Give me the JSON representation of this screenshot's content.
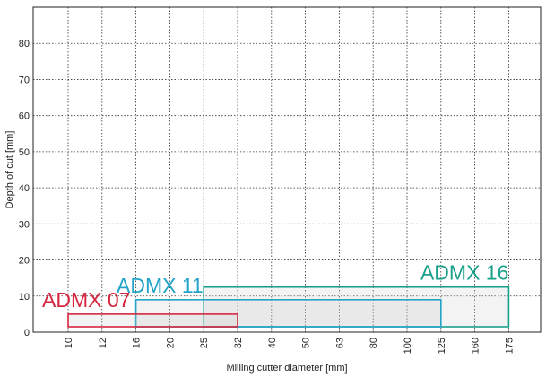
{
  "chart_data": {
    "type": "range-box",
    "xlabel": "Milling cutter diameter [mm]",
    "ylabel": "Depth of cut [mm]",
    "x_scale": "categorical",
    "categories": [
      "10",
      "12",
      "16",
      "20",
      "25",
      "32",
      "40",
      "50",
      "63",
      "80",
      "100",
      "125",
      "160",
      "175"
    ],
    "ylim": [
      0,
      90
    ],
    "yticks": [
      0,
      10,
      20,
      30,
      40,
      50,
      60,
      70,
      80
    ],
    "grid": true,
    "series": [
      {
        "name": "ADMX 07",
        "color": "#d6263f",
        "x_range": [
          "10",
          "32"
        ],
        "y_range": [
          0,
          5
        ]
      },
      {
        "name": "ADMX 11",
        "color": "#24a3c8",
        "x_range": [
          "16",
          "125"
        ],
        "y_range": [
          0,
          9
        ]
      },
      {
        "name": "ADMX 16",
        "color": "#19a08a",
        "x_range": [
          "25",
          "175"
        ],
        "y_range": [
          0,
          12.5
        ]
      }
    ]
  }
}
